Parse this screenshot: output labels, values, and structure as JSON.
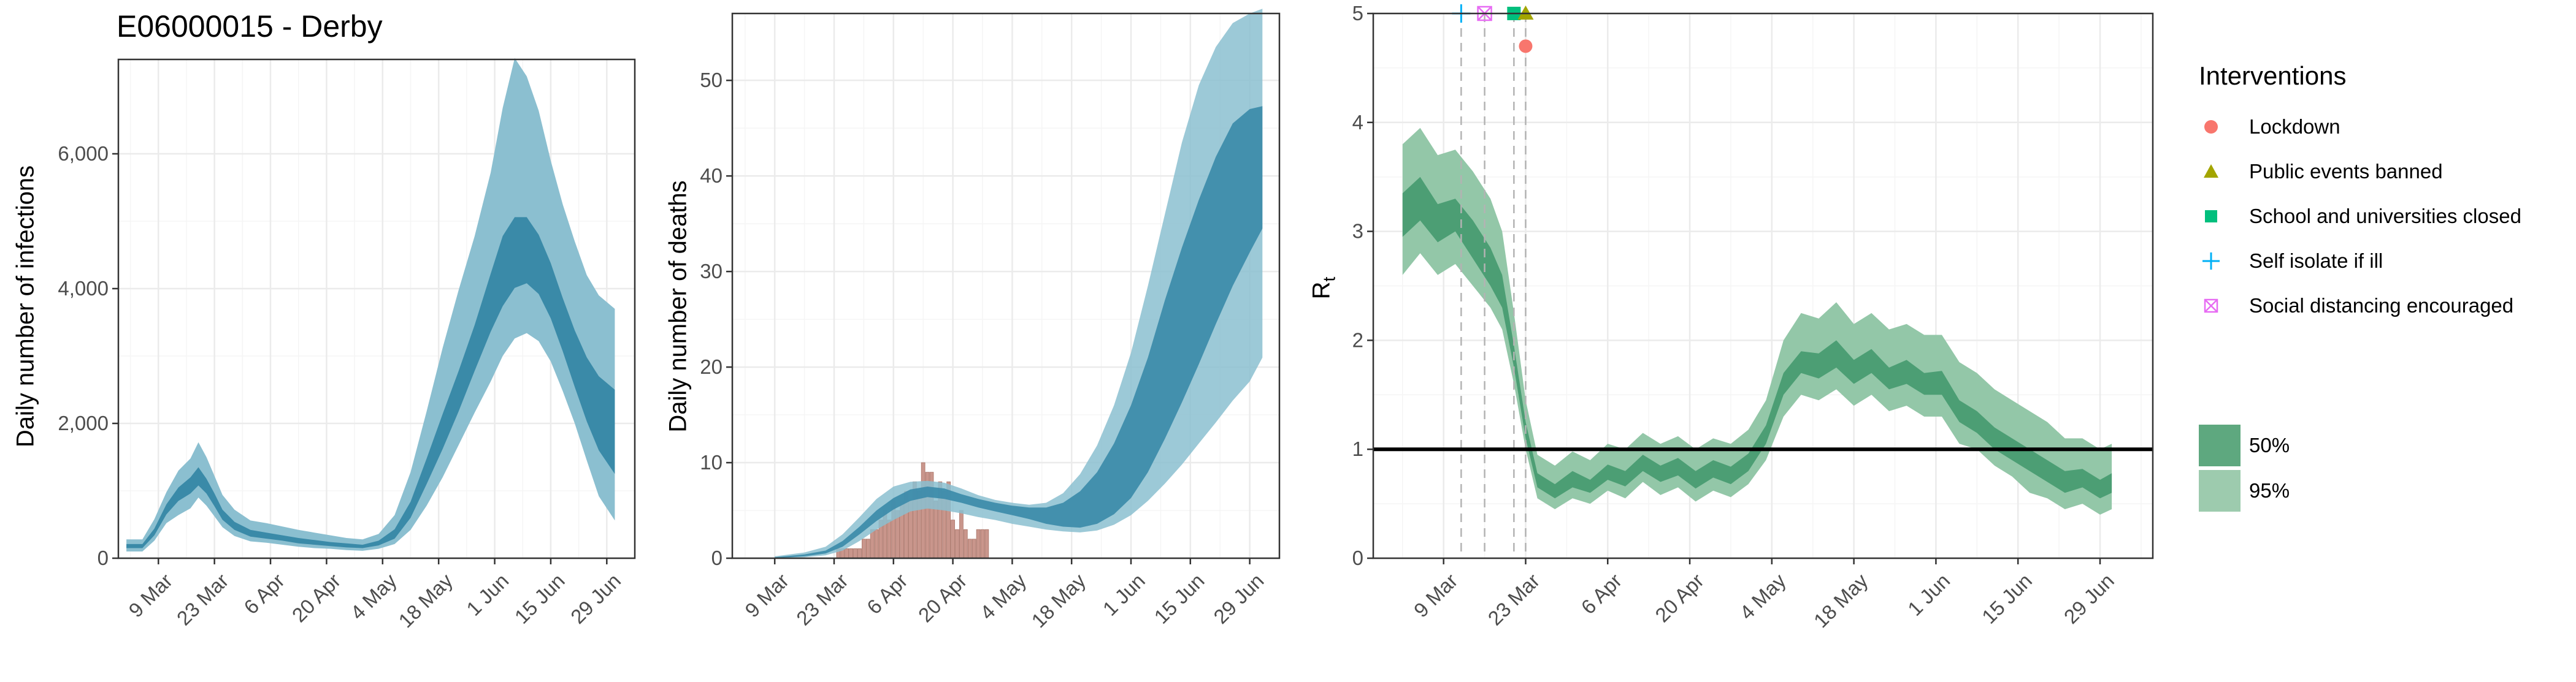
{
  "title": "E06000015 - Derby",
  "x_tick_labels": [
    "9 Mar",
    "23 Mar",
    "6 Apr",
    "20 Apr",
    "4 May",
    "18 May",
    "1 Jun",
    "15 Jun",
    "29 Jun"
  ],
  "colors": {
    "infection_dark": "#3a8aa8",
    "infection_light": "#8bbfd0",
    "death_bar": "#c9968c",
    "rt_dark": "#4c9e74",
    "rt_light": "#93c7a8",
    "grid": "#ebebeb",
    "vline": "#b3b3b3"
  },
  "legend": {
    "title": "Interventions",
    "items": [
      {
        "label": "Lockdown",
        "shape": "circle",
        "color": "#f8766d"
      },
      {
        "label": "Public events banned",
        "shape": "triangle",
        "color": "#a3a500"
      },
      {
        "label": "School and universities closed",
        "shape": "square",
        "color": "#00bf7d"
      },
      {
        "label": "Self isolate if ill",
        "shape": "plus",
        "color": "#00b0f6"
      },
      {
        "label": "Social distancing encouraged",
        "shape": "boxx",
        "color": "#e76bf3"
      }
    ],
    "fills": [
      {
        "label": "50%",
        "color": "#5ea87f"
      },
      {
        "label": "95%",
        "color": "#9dcbae"
      }
    ]
  },
  "chart_data": [
    {
      "type": "area",
      "title": "E06000015 - Derby",
      "ylabel": "Daily number of infections",
      "ylim": [
        0,
        7400
      ],
      "y_ticks": [
        0,
        2000,
        4000,
        6000
      ],
      "y_tick_labels": [
        "0",
        "2,000",
        "4,000",
        "6,000"
      ],
      "x_range": [
        "2020-02-28",
        "2020-07-06"
      ],
      "series": [
        {
          "bands": "95% and 50% credible intervals",
          "x": [
            "2020-03-01",
            "2020-03-05",
            "2020-03-08",
            "2020-03-11",
            "2020-03-14",
            "2020-03-17",
            "2020-03-19",
            "2020-03-21",
            "2020-03-23",
            "2020-03-25",
            "2020-03-28",
            "2020-04-01",
            "2020-04-05",
            "2020-04-09",
            "2020-04-13",
            "2020-04-17",
            "2020-04-21",
            "2020-04-25",
            "2020-04-29",
            "2020-05-03",
            "2020-05-07",
            "2020-05-11",
            "2020-05-15",
            "2020-05-19",
            "2020-05-23",
            "2020-05-27",
            "2020-05-31",
            "2020-06-03",
            "2020-06-06",
            "2020-06-09",
            "2020-06-12",
            "2020-06-15",
            "2020-06-18",
            "2020-06-21",
            "2020-06-24",
            "2020-06-27",
            "2020-07-01"
          ],
          "lower95": [
            100,
            100,
            260,
            520,
            640,
            740,
            900,
            780,
            620,
            460,
            330,
            250,
            230,
            200,
            170,
            150,
            140,
            120,
            110,
            140,
            210,
            420,
            780,
            1200,
            1680,
            2160,
            2620,
            3000,
            3260,
            3340,
            3220,
            2920,
            2480,
            2000,
            1450,
            920,
            560
          ],
          "lower50": [
            150,
            150,
            340,
            650,
            850,
            960,
            1080,
            960,
            770,
            570,
            420,
            320,
            290,
            260,
            220,
            200,
            180,
            160,
            150,
            190,
            290,
            600,
            1100,
            1620,
            2180,
            2780,
            3360,
            3740,
            4010,
            4080,
            3920,
            3560,
            3070,
            2540,
            2030,
            1600,
            1250
          ],
          "upper50": [
            210,
            210,
            440,
            800,
            1050,
            1200,
            1350,
            1180,
            960,
            720,
            540,
            420,
            380,
            340,
            300,
            270,
            240,
            220,
            200,
            260,
            430,
            840,
            1480,
            2140,
            2780,
            3460,
            4220,
            4780,
            5060,
            5060,
            4800,
            4380,
            3860,
            3380,
            2980,
            2700,
            2500
          ],
          "upper95": [
            280,
            280,
            580,
            980,
            1300,
            1480,
            1720,
            1500,
            1220,
            940,
            720,
            560,
            520,
            470,
            420,
            380,
            340,
            300,
            280,
            360,
            640,
            1280,
            2180,
            3120,
            3980,
            4780,
            5720,
            6680,
            7420,
            7150,
            6640,
            5900,
            5250,
            4700,
            4200,
            3900,
            3700
          ]
        }
      ]
    },
    {
      "type": "bar",
      "ylabel": "Daily number of deaths",
      "ylim": [
        0,
        57
      ],
      "y_ticks": [
        0,
        10,
        20,
        30,
        40,
        50
      ],
      "y_tick_labels": [
        "0",
        "10",
        "20",
        "30",
        "40",
        "50"
      ],
      "x_range": [
        "2020-02-28",
        "2020-07-06"
      ],
      "bars": {
        "name": "Observed deaths",
        "start_date": "2020-03-24",
        "values": [
          1,
          1,
          1,
          1,
          1,
          1,
          2,
          2,
          3,
          3,
          4,
          5,
          4,
          6,
          5,
          6,
          7,
          6,
          8,
          7,
          10,
          9,
          9,
          6,
          8,
          7,
          8,
          4,
          3,
          5,
          3,
          2,
          2,
          3,
          3,
          3
        ]
      },
      "series": [
        {
          "bands": "95% and 50% credible intervals",
          "x": [
            "2020-03-09",
            "2020-03-16",
            "2020-03-21",
            "2020-03-25",
            "2020-03-29",
            "2020-04-02",
            "2020-04-06",
            "2020-04-10",
            "2020-04-14",
            "2020-04-18",
            "2020-04-22",
            "2020-04-26",
            "2020-04-30",
            "2020-05-04",
            "2020-05-08",
            "2020-05-12",
            "2020-05-16",
            "2020-05-20",
            "2020-05-24",
            "2020-05-28",
            "2020-06-01",
            "2020-06-05",
            "2020-06-09",
            "2020-06-13",
            "2020-06-17",
            "2020-06-21",
            "2020-06-25",
            "2020-06-29",
            "2020-07-02"
          ],
          "lower95": [
            0,
            0.1,
            0.3,
            0.8,
            1.8,
            3.0,
            4.0,
            4.9,
            5.2,
            5.0,
            4.7,
            4.3,
            4.0,
            3.6,
            3.3,
            3.0,
            2.8,
            2.7,
            2.9,
            3.5,
            4.5,
            6.0,
            7.8,
            9.8,
            12.0,
            14.2,
            16.5,
            18.5,
            21.0
          ],
          "lower50": [
            0,
            0.2,
            0.5,
            1.2,
            2.5,
            3.9,
            5.1,
            6.0,
            6.4,
            6.2,
            5.8,
            5.3,
            4.9,
            4.5,
            4.1,
            3.6,
            3.3,
            3.2,
            3.6,
            4.6,
            6.3,
            9.0,
            12.5,
            16.3,
            20.3,
            24.5,
            28.5,
            32.0,
            34.5
          ],
          "upper50": [
            0.1,
            0.4,
            0.8,
            1.8,
            3.3,
            5.0,
            6.3,
            7.2,
            7.5,
            7.3,
            6.7,
            6.2,
            5.8,
            5.5,
            5.3,
            5.3,
            5.8,
            7.0,
            9.0,
            12.0,
            16.0,
            21.0,
            27.0,
            32.5,
            37.5,
            42.0,
            45.5,
            47.0,
            47.3
          ],
          "upper95": [
            0.2,
            0.6,
            1.2,
            2.5,
            4.3,
            6.2,
            7.5,
            8.0,
            8.1,
            7.9,
            7.3,
            6.6,
            6.1,
            5.8,
            5.6,
            5.8,
            6.8,
            8.8,
            11.8,
            16.0,
            21.5,
            28.5,
            36.0,
            43.5,
            49.5,
            53.5,
            56.0,
            57.0,
            57.5
          ]
        }
      ]
    },
    {
      "type": "area",
      "ylabel": "R",
      "ylabel_subscript": "t",
      "ylim": [
        0,
        5
      ],
      "y_ticks": [
        0,
        1,
        2,
        3,
        4,
        5
      ],
      "y_tick_labels": [
        "0",
        "1",
        "2",
        "3",
        "4",
        "5"
      ],
      "x_range": [
        "2020-02-26",
        "2020-07-08"
      ],
      "reference_line": 1,
      "intervention_dates": [
        "2020-03-12",
        "2020-03-16",
        "2020-03-21",
        "2020-03-23"
      ],
      "interventions": [
        {
          "label": "Self isolate if ill",
          "date": "2020-03-12",
          "y": 5.0
        },
        {
          "label": "Social distancing encouraged",
          "date": "2020-03-16",
          "y": 5.0
        },
        {
          "label": "School and universities closed",
          "date": "2020-03-21",
          "y": 5.0
        },
        {
          "label": "Public events banned",
          "date": "2020-03-23",
          "y": 5.0
        },
        {
          "label": "Lockdown",
          "date": "2020-03-23",
          "y": 4.7
        }
      ],
      "series": [
        {
          "bands": "95% and 50% credible intervals",
          "x": [
            "2020-03-02",
            "2020-03-05",
            "2020-03-08",
            "2020-03-11",
            "2020-03-14",
            "2020-03-17",
            "2020-03-19",
            "2020-03-21",
            "2020-03-23",
            "2020-03-25",
            "2020-03-28",
            "2020-03-31",
            "2020-04-03",
            "2020-04-06",
            "2020-04-09",
            "2020-04-12",
            "2020-04-15",
            "2020-04-18",
            "2020-04-21",
            "2020-04-24",
            "2020-04-27",
            "2020-04-30",
            "2020-05-03",
            "2020-05-06",
            "2020-05-09",
            "2020-05-12",
            "2020-05-15",
            "2020-05-18",
            "2020-05-21",
            "2020-05-24",
            "2020-05-27",
            "2020-05-30",
            "2020-06-02",
            "2020-06-05",
            "2020-06-08",
            "2020-06-11",
            "2020-06-14",
            "2020-06-17",
            "2020-06-20",
            "2020-06-23",
            "2020-06-26",
            "2020-06-29",
            "2020-07-01"
          ],
          "lower95": [
            2.6,
            2.8,
            2.6,
            2.7,
            2.5,
            2.3,
            2.1,
            1.6,
            1.0,
            0.55,
            0.45,
            0.55,
            0.5,
            0.62,
            0.55,
            0.7,
            0.58,
            0.65,
            0.52,
            0.62,
            0.56,
            0.68,
            0.9,
            1.3,
            1.5,
            1.45,
            1.55,
            1.4,
            1.5,
            1.35,
            1.4,
            1.3,
            1.3,
            1.05,
            1.0,
            0.85,
            0.75,
            0.6,
            0.55,
            0.45,
            0.5,
            0.4,
            0.45
          ],
          "lower50": [
            2.95,
            3.1,
            2.9,
            3.0,
            2.75,
            2.5,
            2.3,
            1.75,
            1.1,
            0.65,
            0.55,
            0.65,
            0.6,
            0.72,
            0.66,
            0.8,
            0.7,
            0.76,
            0.64,
            0.74,
            0.68,
            0.8,
            1.05,
            1.5,
            1.7,
            1.65,
            1.75,
            1.6,
            1.7,
            1.55,
            1.6,
            1.5,
            1.5,
            1.25,
            1.15,
            1.0,
            0.9,
            0.8,
            0.7,
            0.6,
            0.65,
            0.55,
            0.6
          ],
          "upper50": [
            3.35,
            3.5,
            3.25,
            3.3,
            3.1,
            2.85,
            2.6,
            1.95,
            1.25,
            0.78,
            0.68,
            0.8,
            0.72,
            0.86,
            0.8,
            0.95,
            0.85,
            0.92,
            0.8,
            0.9,
            0.84,
            0.96,
            1.22,
            1.7,
            1.9,
            1.88,
            2.0,
            1.82,
            1.92,
            1.75,
            1.82,
            1.7,
            1.72,
            1.45,
            1.35,
            1.2,
            1.1,
            1.0,
            0.9,
            0.8,
            0.82,
            0.72,
            0.78
          ],
          "upper95": [
            3.8,
            3.95,
            3.7,
            3.75,
            3.55,
            3.3,
            3.0,
            2.25,
            1.45,
            0.95,
            0.85,
            0.98,
            0.9,
            1.05,
            1.0,
            1.15,
            1.05,
            1.12,
            1.0,
            1.1,
            1.05,
            1.18,
            1.45,
            2.0,
            2.25,
            2.2,
            2.35,
            2.15,
            2.25,
            2.1,
            2.15,
            2.05,
            2.05,
            1.8,
            1.7,
            1.55,
            1.45,
            1.35,
            1.25,
            1.1,
            1.1,
            1.0,
            1.05
          ]
        }
      ]
    }
  ]
}
